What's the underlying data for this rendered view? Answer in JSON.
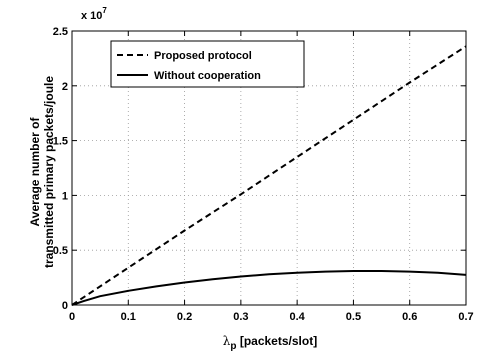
{
  "chart_data": {
    "type": "line",
    "title": "",
    "xlabel": "λ",
    "xlabel_sub": "p",
    "xlabel_suffix": " [packets/slot]",
    "ylabel_lines": [
      "Average number of",
      "transmitted primary packets/joule"
    ],
    "y_multiplier_base": "x 10",
    "y_multiplier_exp": "7",
    "xlim": [
      0,
      0.7
    ],
    "ylim": [
      0,
      2.5
    ],
    "xticks": [
      0,
      0.1,
      0.2,
      0.3,
      0.4,
      0.5,
      0.6,
      0.7
    ],
    "xtick_labels": [
      "0",
      "0.1",
      "0.2",
      "0.3",
      "0.4",
      "0.5",
      "0.6",
      "0.7"
    ],
    "yticks": [
      0,
      0.5,
      1,
      1.5,
      2,
      2.5
    ],
    "ytick_labels": [
      "0",
      "0.5",
      "1",
      "1.5",
      "2",
      "2.5"
    ],
    "grid": true,
    "legend_position": "top-left",
    "series": [
      {
        "name": "Proposed protocol",
        "style": "dashed",
        "color": "#000000",
        "x": [
          0,
          0.1,
          0.2,
          0.3,
          0.4,
          0.5,
          0.6,
          0.7
        ],
        "y": [
          0,
          0.34,
          0.68,
          1.01,
          1.35,
          1.69,
          2.03,
          2.36
        ]
      },
      {
        "name": "Without cooperation",
        "style": "solid",
        "color": "#000000",
        "x": [
          0,
          0.02,
          0.05,
          0.1,
          0.15,
          0.2,
          0.25,
          0.3,
          0.35,
          0.4,
          0.45,
          0.5,
          0.55,
          0.6,
          0.65,
          0.7
        ],
        "y": [
          0,
          0.035,
          0.08,
          0.13,
          0.17,
          0.205,
          0.235,
          0.26,
          0.28,
          0.295,
          0.305,
          0.31,
          0.31,
          0.305,
          0.295,
          0.275
        ]
      }
    ]
  }
}
